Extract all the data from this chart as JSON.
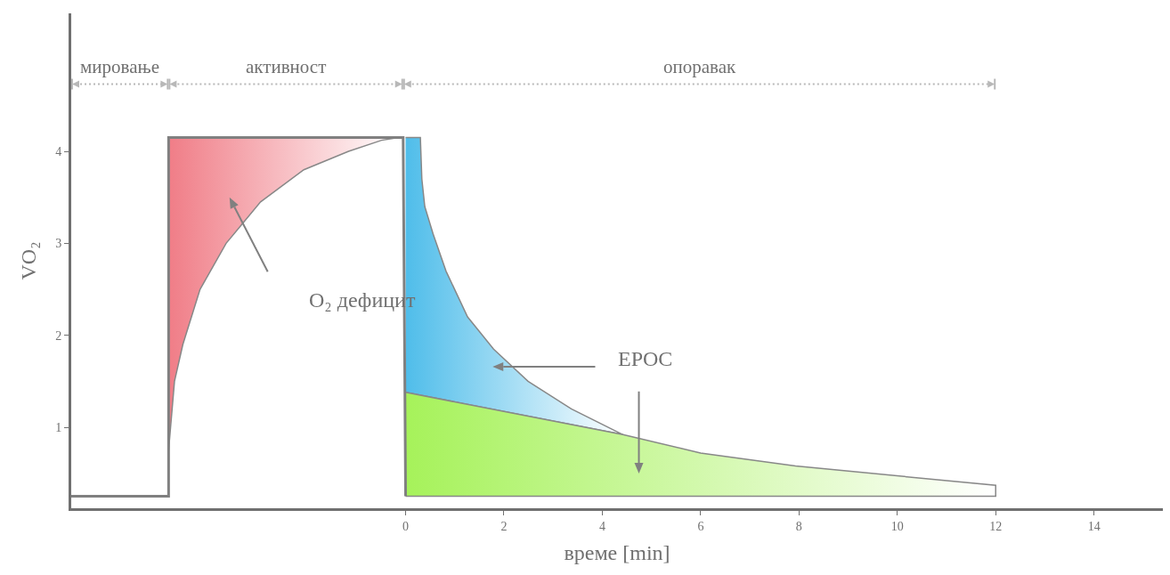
{
  "chart_data": {
    "type": "area",
    "xlabel": "време [min]",
    "ylabel": "VO₂",
    "xlim": [
      -6.8,
      15.4
    ],
    "ylim": [
      0.12,
      5.5
    ],
    "xticks": [
      0,
      2,
      4,
      6,
      8,
      10,
      12,
      14
    ],
    "yticks": [
      1,
      2,
      3,
      4
    ],
    "grid": false,
    "series": [
      {
        "color": "#f07d87",
        "x": [
          -4.82,
          -4.82,
          -4.7,
          -4.53,
          -4.18,
          -3.65,
          -2.95,
          -2.07,
          -1.16,
          -0.49,
          -0.14,
          -4.82
        ],
        "values": [
          4.15,
          0.75,
          1.5,
          1.9,
          2.5,
          3.0,
          3.45,
          3.8,
          4.0,
          4.12,
          4.15,
          4.15
        ]
      },
      {
        "color": "#4fbdea",
        "x": [
          0,
          0.3,
          0.33,
          0.39,
          0.56,
          0.82,
          1.26,
          1.79,
          2.49,
          3.37,
          4.42,
          0
        ],
        "values": [
          4.15,
          4.15,
          3.7,
          3.4,
          3.1,
          2.7,
          2.2,
          1.85,
          1.5,
          1.2,
          0.92,
          1.38
        ]
      },
      {
        "color": "#a6f25a",
        "x": [
          0,
          4.42,
          6,
          7.93,
          10.04,
          12,
          12,
          0
        ],
        "values": [
          1.38,
          0.92,
          0.72,
          0.58,
          0.47,
          0.37,
          0.25,
          0.25
        ]
      },
      {
        "type": "line",
        "color": "#808080",
        "x": [
          -6.8,
          -4.82,
          -4.82,
          -0.05,
          0
        ],
        "values": [
          0.25,
          0.25,
          4.15,
          4.15,
          0.25
        ]
      }
    ],
    "annotations": [
      "мировање",
      "активност",
      "опоравак",
      "O₂ дефицит",
      "EPOC"
    ]
  }
}
